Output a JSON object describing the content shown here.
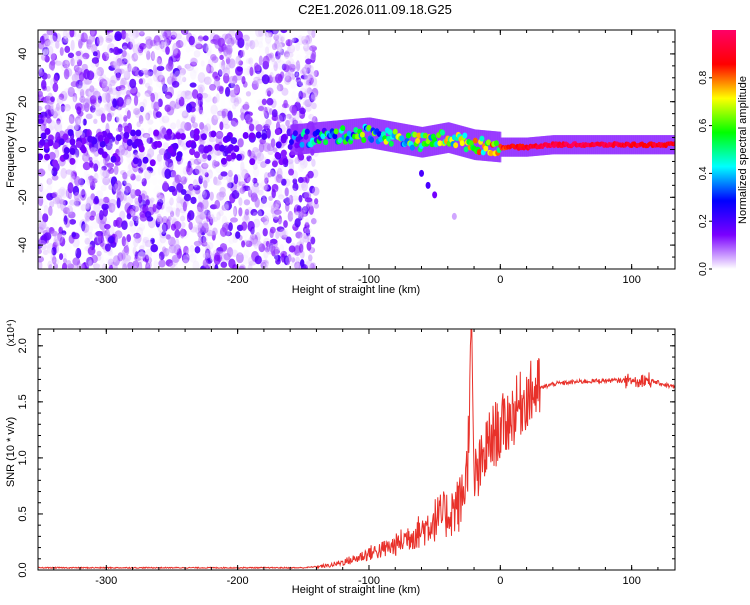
{
  "title": "C2E1.2026.011.09.18.G25",
  "colorbar": {
    "label": "Normalized spectral amplitude",
    "ticks": [
      "0.0",
      "0.2",
      "0.4",
      "0.6",
      "0.8"
    ],
    "tick_values": [
      0.0,
      0.2,
      0.4,
      0.6,
      0.8
    ],
    "range": [
      0,
      1
    ],
    "colors": [
      "#ffffff",
      "#7a00ff",
      "#0000ff",
      "#00ffff",
      "#00ff00",
      "#ffff00",
      "#ff0000",
      "#ff0066"
    ]
  },
  "chart_data": [
    {
      "type": "heatmap",
      "xlabel": "Height of straight line (km)",
      "ylabel": "Frequency (Hz)",
      "xlim": [
        -352,
        133
      ],
      "ylim": [
        -50,
        50
      ],
      "xticks": [
        -300,
        -200,
        -100,
        0,
        100
      ],
      "xtick_labels": [
        "-300",
        "-200",
        "-100",
        "0",
        "100"
      ],
      "yticks": [
        -40,
        -20,
        0,
        20,
        40
      ],
      "ytick_labels": [
        "-40",
        "-20",
        "0",
        "20",
        "40"
      ],
      "noise_region": {
        "x_from": -352,
        "x_to": -150,
        "amplitude_range": [
          0.0,
          0.2
        ]
      },
      "signal_band": [
        {
          "x": -160,
          "y": 4,
          "amp": 0.4
        },
        {
          "x": -140,
          "y": 5,
          "amp": 0.6
        },
        {
          "x": -120,
          "y": 6,
          "amp": 0.7
        },
        {
          "x": -100,
          "y": 7,
          "amp": 0.7
        },
        {
          "x": -80,
          "y": 5,
          "amp": 0.75
        },
        {
          "x": -60,
          "y": 3,
          "amp": 0.8
        },
        {
          "x": -40,
          "y": 5,
          "amp": 0.8
        },
        {
          "x": -20,
          "y": 2,
          "amp": 0.85
        },
        {
          "x": 0,
          "y": 1,
          "amp": 0.9
        },
        {
          "x": 20,
          "y": 1,
          "amp": 0.95
        },
        {
          "x": 40,
          "y": 2,
          "amp": 1.0
        },
        {
          "x": 60,
          "y": 2,
          "amp": 1.0
        },
        {
          "x": 80,
          "y": 2,
          "amp": 1.0
        },
        {
          "x": 100,
          "y": 2,
          "amp": 0.95
        },
        {
          "x": 120,
          "y": 2,
          "amp": 0.95
        }
      ],
      "tail_points": [
        {
          "x": -60,
          "y": -10,
          "amp": 0.2
        },
        {
          "x": -55,
          "y": -15,
          "amp": 0.2
        },
        {
          "x": -50,
          "y": -19,
          "amp": 0.15
        },
        {
          "x": -35,
          "y": -28,
          "amp": 0.05
        }
      ]
    },
    {
      "type": "line",
      "xlabel": "Height of straight line (km)",
      "ylabel": "SNR (10 * v/v)",
      "y_scale_label": "(x10⁴)",
      "color": "#e8312a",
      "xlim": [
        -352,
        133
      ],
      "ylim": [
        0,
        2.15
      ],
      "xticks": [
        -300,
        -200,
        -100,
        0,
        100
      ],
      "xtick_labels": [
        "-300",
        "-200",
        "-100",
        "0",
        "100"
      ],
      "yticks": [
        0.0,
        0.5,
        1.0,
        1.5,
        2.0
      ],
      "ytick_labels": [
        "0.0",
        "0.5",
        "1.0",
        "1.5",
        "2.0"
      ],
      "series": [
        {
          "x": [
            -352,
            -300,
            -250,
            -200,
            -150,
            -130,
            -110,
            -100,
            -90,
            -80,
            -70,
            -60,
            -50,
            -40,
            -30,
            -25,
            -22,
            -20,
            -15,
            -10,
            -5,
            0,
            10,
            20,
            30,
            40,
            60,
            80,
            100,
            110,
            120,
            133
          ],
          "y": [
            0.02,
            0.02,
            0.02,
            0.02,
            0.02,
            0.04,
            0.1,
            0.15,
            0.18,
            0.22,
            0.3,
            0.35,
            0.45,
            0.5,
            0.6,
            0.9,
            2.15,
            0.8,
            0.9,
            1.1,
            1.2,
            1.25,
            1.4,
            1.55,
            1.62,
            1.66,
            1.68,
            1.69,
            1.69,
            1.7,
            1.67,
            1.63
          ]
        }
      ]
    }
  ]
}
